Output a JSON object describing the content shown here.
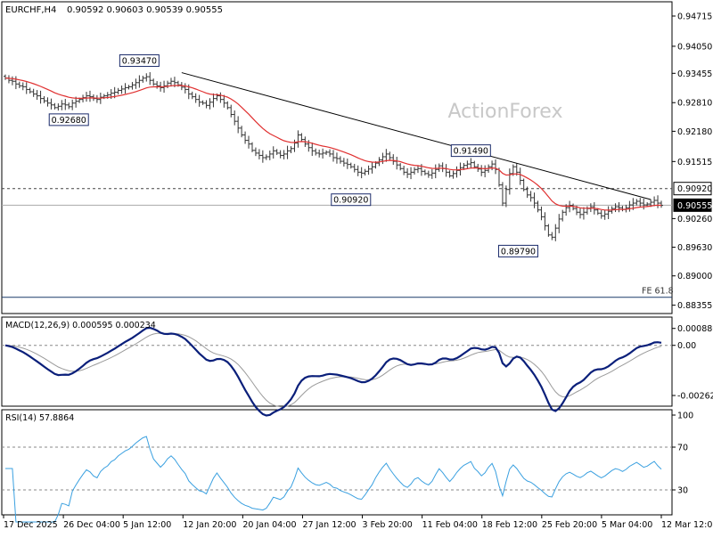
{
  "chart_data": {
    "type": "ohlc",
    "instrument": "EURCHF,H4",
    "ohlc_header": "0.90592 0.90603 0.90539 0.90555",
    "watermark": "ActionForex",
    "colors": {
      "bars": "#333333",
      "ma": "#e03030",
      "trendline": "#000000",
      "macd": "#0a1f7a",
      "macd_signal": "#9a9a9a",
      "rsi": "#3aa0e0",
      "grid_dash": "#888888",
      "axis": "#000000"
    },
    "price_axis": {
      "ticks": [
        "0.94715",
        "0.94050",
        "0.93455",
        "0.92810",
        "0.92180",
        "0.91515",
        "0.90260",
        "0.89630",
        "0.89000",
        "0.88355"
      ],
      "ylim": [
        0.8825,
        0.9495
      ]
    },
    "time_axis": {
      "labels": [
        "17 Dec 2025",
        "26 Dec 04:00",
        "5 Jan 12:00",
        "12 Jan 20:00",
        "20 Jan 04:00",
        "27 Jan 12:00",
        "3 Feb 20:00",
        "11 Feb 04:00",
        "18 Feb 12:00",
        "25 Feb 20:00",
        "5 Mar 04:00",
        "12 Mar 12:00"
      ]
    },
    "price_labels": [
      {
        "text": "0.93470",
        "bar": 38,
        "price": 0.9347
      },
      {
        "text": "0.92680",
        "bar": 18,
        "price": 0.9268
      },
      {
        "text": "0.91490",
        "bar": 132,
        "price": 0.9149
      },
      {
        "text": "0.90920",
        "bar": 98,
        "price": 0.9092
      },
      {
        "text": "0.89790",
        "bar": 152,
        "price": 0.8979
      }
    ],
    "horizontal_levels": [
      {
        "label": "0.90920",
        "price": 0.9092,
        "style": "dashed"
      },
      {
        "label": "0.90555",
        "price": 0.90555,
        "style": "solid"
      },
      {
        "label": "FE 61.8",
        "price": 0.8853,
        "style": "solid"
      }
    ],
    "trendline": {
      "from": {
        "bar": 50,
        "price": 0.9347
      },
      "to": {
        "bar": 183,
        "price": 0.9068
      }
    },
    "price_series_close": [
      0.9335,
      0.933,
      0.9328,
      0.9322,
      0.9318,
      0.9316,
      0.931,
      0.9305,
      0.93,
      0.9296,
      0.929,
      0.9285,
      0.928,
      0.9276,
      0.927,
      0.9273,
      0.9278,
      0.9276,
      0.9272,
      0.928,
      0.9284,
      0.9288,
      0.9292,
      0.9296,
      0.9294,
      0.929,
      0.9288,
      0.9293,
      0.9296,
      0.9298,
      0.9302,
      0.9304,
      0.9308,
      0.9311,
      0.9314,
      0.9316,
      0.932,
      0.9325,
      0.933,
      0.9335,
      0.9338,
      0.933,
      0.9322,
      0.9318,
      0.9314,
      0.9318,
      0.9324,
      0.9328,
      0.9325,
      0.932,
      0.9315,
      0.931,
      0.93,
      0.9294,
      0.9288,
      0.9282,
      0.928,
      0.9275,
      0.9282,
      0.929,
      0.9296,
      0.9288,
      0.928,
      0.927,
      0.9255,
      0.924,
      0.9225,
      0.921,
      0.9198,
      0.919,
      0.9176,
      0.917,
      0.9165,
      0.916,
      0.9162,
      0.9168,
      0.9175,
      0.917,
      0.9165,
      0.9168,
      0.9175,
      0.918,
      0.9192,
      0.921,
      0.92,
      0.919,
      0.9182,
      0.9175,
      0.917,
      0.9168,
      0.917,
      0.9172,
      0.9168,
      0.916,
      0.9158,
      0.9152,
      0.9148,
      0.9145,
      0.914,
      0.9134,
      0.9128,
      0.9126,
      0.913,
      0.9135,
      0.914,
      0.9148,
      0.9155,
      0.9162,
      0.9168,
      0.916,
      0.9152,
      0.9144,
      0.9136,
      0.9128,
      0.9124,
      0.9128,
      0.9134,
      0.9136,
      0.913,
      0.9125,
      0.9122,
      0.9126,
      0.9134,
      0.9142,
      0.9136,
      0.9128,
      0.912,
      0.9125,
      0.9132,
      0.9138,
      0.9143,
      0.9146,
      0.9149,
      0.914,
      0.9135,
      0.9128,
      0.9132,
      0.914,
      0.9146,
      0.9134,
      0.91,
      0.906,
      0.909,
      0.9125,
      0.914,
      0.9128,
      0.911,
      0.909,
      0.9078,
      0.9072,
      0.906,
      0.9045,
      0.903,
      0.901,
      0.899,
      0.8985,
      0.9005,
      0.9025,
      0.904,
      0.905,
      0.9055,
      0.9048,
      0.904,
      0.9035,
      0.904,
      0.9048,
      0.9052,
      0.9045,
      0.9038,
      0.9032,
      0.9036,
      0.9042,
      0.9048,
      0.9052,
      0.905,
      0.9046,
      0.905,
      0.9056,
      0.906,
      0.9064,
      0.906,
      0.9056,
      0.9058,
      0.9062,
      0.9066,
      0.906,
      0.9055
    ],
    "ma_period": 55,
    "macd": {
      "label": "MACD(12,26,9) 0.000595 0.000234",
      "ticks": [
        "0.000886",
        "0.00",
        "-0.002627"
      ],
      "ylim": [
        -0.003,
        0.0012
      ]
    },
    "rsi": {
      "label": "RSI(14) 57.8864",
      "ticks": [
        "100",
        "70",
        "30"
      ],
      "ylim": [
        10,
        100
      ],
      "levels": [
        70,
        30
      ]
    }
  }
}
